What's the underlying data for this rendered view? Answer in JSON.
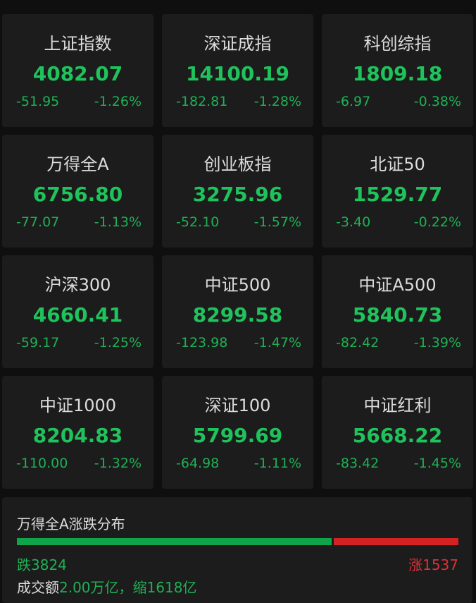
{
  "indices": [
    {
      "name": "上证指数",
      "price": "4082.07",
      "change": "-51.95",
      "pct": "-1.26%"
    },
    {
      "name": "深证成指",
      "price": "14100.19",
      "change": "-182.81",
      "pct": "-1.28%"
    },
    {
      "name": "科创综指",
      "price": "1809.18",
      "change": "-6.97",
      "pct": "-0.38%"
    },
    {
      "name": "万得全A",
      "price": "6756.80",
      "change": "-77.07",
      "pct": "-1.13%"
    },
    {
      "name": "创业板指",
      "price": "3275.96",
      "change": "-52.10",
      "pct": "-1.57%"
    },
    {
      "name": "北证50",
      "price": "1529.77",
      "change": "-3.40",
      "pct": "-0.22%"
    },
    {
      "name": "沪深300",
      "price": "4660.41",
      "change": "-59.17",
      "pct": "-1.25%"
    },
    {
      "name": "中证500",
      "price": "8299.58",
      "change": "-123.98",
      "pct": "-1.47%"
    },
    {
      "name": "中证A500",
      "price": "5840.73",
      "change": "-82.42",
      "pct": "-1.39%"
    },
    {
      "name": "中证1000",
      "price": "8204.83",
      "change": "-110.00",
      "pct": "-1.32%"
    },
    {
      "name": "深证100",
      "price": "5799.69",
      "change": "-64.98",
      "pct": "-1.11%"
    },
    {
      "name": "中证红利",
      "price": "5668.22",
      "change": "-83.42",
      "pct": "-1.45%"
    }
  ],
  "breadth": {
    "title": "万得全A涨跌分布",
    "down_label": "跌3824",
    "up_label": "涨1537",
    "down_count": 3824,
    "up_count": 1537,
    "volume_label": "成交额",
    "volume_value": "2.00万亿，缩1618亿",
    "colors": {
      "down": "#0fa34a",
      "up": "#d42222"
    }
  }
}
